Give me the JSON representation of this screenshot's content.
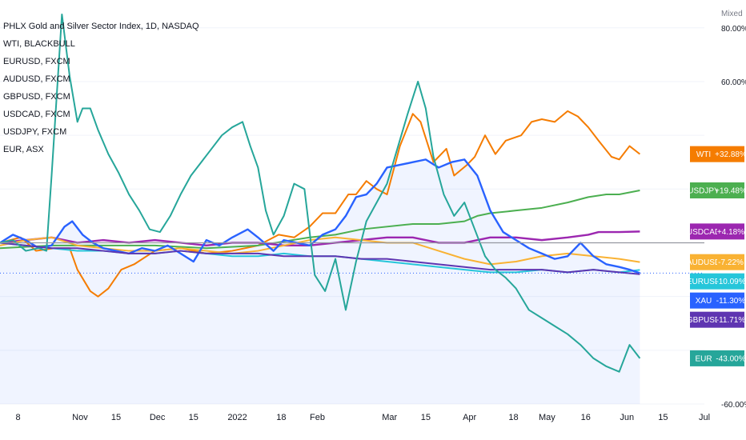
{
  "legend": {
    "title": "PHLX Gold and Silver Sector Index, 1D, NASDAQ",
    "items": [
      "WTI, BLACKBULL",
      "EURUSD, FXCM",
      "AUDUSD, FXCM",
      "GBPUSD, FXCM",
      "USDCAD, FXCM",
      "USDJPY, FXCM",
      "EUR, ASX"
    ]
  },
  "scale_mode": "Mixed",
  "chart_data": {
    "type": "line",
    "x_range": [
      "2021-10-01",
      "2022-07-01"
    ],
    "x_ticks": [
      "8",
      "Nov",
      "15",
      "Dec",
      "15",
      "2022",
      "18",
      "Feb",
      "Mar",
      "15",
      "Apr",
      "18",
      "May",
      "16",
      "Jun",
      "15",
      "Jul"
    ],
    "x_tick_dates": [
      "2021-10-08",
      "2021-11-01",
      "2021-11-15",
      "2021-12-01",
      "2021-12-15",
      "2022-01-01",
      "2022-01-18",
      "2022-02-01",
      "2022-03-01",
      "2022-03-15",
      "2022-04-01",
      "2022-04-18",
      "2022-05-01",
      "2022-05-16",
      "2022-06-01",
      "2022-06-15",
      "2022-07-01"
    ],
    "y_axis": {
      "unit": "%",
      "ticks": [
        {
          "value": 80,
          "label": "80.00%"
        },
        {
          "value": 60,
          "label": "60.00%"
        },
        {
          "value": -60,
          "label": "-60.00%"
        }
      ],
      "range": [
        -60,
        85
      ],
      "gridlines": [
        80,
        60,
        40,
        20,
        0,
        -20,
        -40,
        -60
      ]
    },
    "baseline_value": 0,
    "current_value_line": -11.3,
    "series": [
      {
        "name": "WTI",
        "color": "#f57c00",
        "last_label": "+32.88%",
        "values": [
          [
            0,
            0
          ],
          [
            8,
            2
          ],
          [
            14,
            -3
          ],
          [
            21,
            -2
          ],
          [
            27,
            -2
          ],
          [
            30,
            -10
          ],
          [
            35,
            -18
          ],
          [
            38,
            -20
          ],
          [
            42,
            -17
          ],
          [
            47,
            -10
          ],
          [
            52,
            -8
          ],
          [
            60,
            -3
          ],
          [
            70,
            -2
          ],
          [
            80,
            -4
          ],
          [
            90,
            -3
          ],
          [
            100,
            -1
          ],
          [
            108,
            3
          ],
          [
            114,
            2
          ],
          [
            120,
            6
          ],
          [
            125,
            11
          ],
          [
            130,
            11
          ],
          [
            135,
            18
          ],
          [
            138,
            18
          ],
          [
            142,
            23
          ],
          [
            146,
            20
          ],
          [
            150,
            18
          ],
          [
            155,
            36
          ],
          [
            160,
            48
          ],
          [
            163,
            45
          ],
          [
            168,
            30
          ],
          [
            173,
            35
          ],
          [
            176,
            25
          ],
          [
            181,
            29
          ],
          [
            184,
            32
          ],
          [
            188,
            40
          ],
          [
            192,
            33
          ],
          [
            196,
            38
          ],
          [
            202,
            40
          ],
          [
            206,
            45
          ],
          [
            210,
            46
          ],
          [
            215,
            45
          ],
          [
            220,
            49
          ],
          [
            224,
            47
          ],
          [
            228,
            43
          ],
          [
            232,
            38
          ],
          [
            237,
            32
          ],
          [
            240,
            31
          ],
          [
            244,
            36
          ],
          [
            248,
            33
          ]
        ]
      },
      {
        "name": "USDJPY",
        "color": "#4caf50",
        "last_label": "+19.48%",
        "values": [
          [
            0,
            -2
          ],
          [
            20,
            -1
          ],
          [
            40,
            -1
          ],
          [
            60,
            -1
          ],
          [
            80,
            -2
          ],
          [
            100,
            -1
          ],
          [
            120,
            2
          ],
          [
            130,
            3
          ],
          [
            140,
            5
          ],
          [
            160,
            7
          ],
          [
            170,
            7
          ],
          [
            180,
            8
          ],
          [
            185,
            10
          ],
          [
            190,
            11
          ],
          [
            200,
            12
          ],
          [
            210,
            13
          ],
          [
            220,
            15
          ],
          [
            228,
            17
          ],
          [
            235,
            18
          ],
          [
            240,
            18
          ],
          [
            248,
            19.5
          ]
        ]
      },
      {
        "name": "USDCAD",
        "color": "#9c27b0",
        "last_label": "+4.18%",
        "values": [
          [
            0,
            0
          ],
          [
            10,
            1
          ],
          [
            20,
            2
          ],
          [
            30,
            0
          ],
          [
            40,
            1
          ],
          [
            50,
            0
          ],
          [
            60,
            1
          ],
          [
            70,
            0
          ],
          [
            80,
            -1
          ],
          [
            90,
            0
          ],
          [
            100,
            0
          ],
          [
            110,
            -1
          ],
          [
            120,
            -1
          ],
          [
            130,
            0
          ],
          [
            140,
            1
          ],
          [
            150,
            2
          ],
          [
            160,
            2
          ],
          [
            170,
            0
          ],
          [
            180,
            0
          ],
          [
            190,
            2
          ],
          [
            200,
            2
          ],
          [
            210,
            1
          ],
          [
            220,
            2
          ],
          [
            228,
            3
          ],
          [
            232,
            4
          ],
          [
            240,
            4
          ],
          [
            248,
            4.2
          ]
        ]
      },
      {
        "name": "AUDUSD",
        "color": "#f9b233",
        "last_label": "-7.22%",
        "values": [
          [
            0,
            -1
          ],
          [
            10,
            1
          ],
          [
            20,
            2
          ],
          [
            30,
            -1
          ],
          [
            40,
            -2
          ],
          [
            50,
            -3
          ],
          [
            60,
            -3
          ],
          [
            70,
            -2
          ],
          [
            80,
            -3
          ],
          [
            90,
            -4
          ],
          [
            100,
            -3
          ],
          [
            110,
            -1
          ],
          [
            120,
            1
          ],
          [
            130,
            2
          ],
          [
            140,
            1
          ],
          [
            150,
            0
          ],
          [
            160,
            0
          ],
          [
            170,
            -3
          ],
          [
            180,
            -6
          ],
          [
            190,
            -8
          ],
          [
            200,
            -7
          ],
          [
            210,
            -5
          ],
          [
            220,
            -4
          ],
          [
            230,
            -5
          ],
          [
            240,
            -6
          ],
          [
            248,
            -7.2
          ]
        ]
      },
      {
        "name": "EURUSD",
        "color": "#26c6da",
        "last_label": "-10.09%",
        "values": [
          [
            0,
            0
          ],
          [
            10,
            -1
          ],
          [
            20,
            -2
          ],
          [
            30,
            -3
          ],
          [
            40,
            -3
          ],
          [
            50,
            -4
          ],
          [
            60,
            -4
          ],
          [
            70,
            -3
          ],
          [
            80,
            -4
          ],
          [
            90,
            -5
          ],
          [
            100,
            -5
          ],
          [
            110,
            -4
          ],
          [
            120,
            -5
          ],
          [
            130,
            -5
          ],
          [
            140,
            -6
          ],
          [
            150,
            -7
          ],
          [
            160,
            -8
          ],
          [
            170,
            -9
          ],
          [
            180,
            -10
          ],
          [
            190,
            -11
          ],
          [
            200,
            -11
          ],
          [
            210,
            -10
          ],
          [
            220,
            -11
          ],
          [
            230,
            -10
          ],
          [
            240,
            -11
          ],
          [
            248,
            -10.1
          ]
        ]
      },
      {
        "name": "XAU",
        "color": "#2962ff",
        "last_label": "-11.30%",
        "values": [
          [
            0,
            0
          ],
          [
            5,
            3
          ],
          [
            10,
            1
          ],
          [
            15,
            -2
          ],
          [
            20,
            -1
          ],
          [
            25,
            6
          ],
          [
            28,
            8
          ],
          [
            32,
            3
          ],
          [
            36,
            0
          ],
          [
            40,
            -2
          ],
          [
            45,
            -3
          ],
          [
            50,
            -4
          ],
          [
            55,
            -2
          ],
          [
            60,
            -3
          ],
          [
            65,
            -1
          ],
          [
            70,
            -4
          ],
          [
            75,
            -7
          ],
          [
            80,
            1
          ],
          [
            85,
            -1
          ],
          [
            90,
            2
          ],
          [
            96,
            5
          ],
          [
            100,
            2
          ],
          [
            106,
            -3
          ],
          [
            110,
            1
          ],
          [
            115,
            0
          ],
          [
            120,
            -1
          ],
          [
            125,
            3
          ],
          [
            130,
            5
          ],
          [
            134,
            10
          ],
          [
            138,
            17
          ],
          [
            142,
            18
          ],
          [
            146,
            22
          ],
          [
            150,
            28
          ],
          [
            155,
            29
          ],
          [
            160,
            30
          ],
          [
            165,
            31
          ],
          [
            170,
            28
          ],
          [
            175,
            30
          ],
          [
            180,
            31
          ],
          [
            185,
            25
          ],
          [
            190,
            12
          ],
          [
            195,
            4
          ],
          [
            200,
            1
          ],
          [
            205,
            -2
          ],
          [
            210,
            -4
          ],
          [
            215,
            -6
          ],
          [
            220,
            -5
          ],
          [
            225,
            0
          ],
          [
            230,
            -5
          ],
          [
            235,
            -8
          ],
          [
            240,
            -9
          ],
          [
            244,
            -10
          ],
          [
            248,
            -11.3
          ]
        ]
      },
      {
        "name": "GBPUSD",
        "color": "#5e35b1",
        "last_label": "-11.71%",
        "values": [
          [
            0,
            0
          ],
          [
            10,
            -1
          ],
          [
            20,
            -2
          ],
          [
            30,
            -2
          ],
          [
            40,
            -3
          ],
          [
            50,
            -4
          ],
          [
            60,
            -4
          ],
          [
            70,
            -3
          ],
          [
            80,
            -4
          ],
          [
            90,
            -4
          ],
          [
            100,
            -4
          ],
          [
            110,
            -5
          ],
          [
            120,
            -5
          ],
          [
            130,
            -5
          ],
          [
            140,
            -6
          ],
          [
            150,
            -6
          ],
          [
            160,
            -7
          ],
          [
            170,
            -8
          ],
          [
            180,
            -9
          ],
          [
            190,
            -10
          ],
          [
            200,
            -10
          ],
          [
            210,
            -10
          ],
          [
            220,
            -11
          ],
          [
            230,
            -10
          ],
          [
            240,
            -11
          ],
          [
            248,
            -11.7
          ]
        ]
      },
      {
        "name": "EUR",
        "color": "#26a69a",
        "last_label": "-43.00%",
        "values": [
          [
            0,
            0
          ],
          [
            5,
            1
          ],
          [
            10,
            -3
          ],
          [
            15,
            -2
          ],
          [
            18,
            -3
          ],
          [
            20,
            25
          ],
          [
            24,
            85
          ],
          [
            27,
            62
          ],
          [
            30,
            45
          ],
          [
            32,
            50
          ],
          [
            35,
            50
          ],
          [
            38,
            42
          ],
          [
            42,
            33
          ],
          [
            46,
            26
          ],
          [
            50,
            18
          ],
          [
            54,
            12
          ],
          [
            58,
            5
          ],
          [
            62,
            4
          ],
          [
            66,
            10
          ],
          [
            70,
            18
          ],
          [
            74,
            25
          ],
          [
            78,
            30
          ],
          [
            82,
            35
          ],
          [
            86,
            40
          ],
          [
            90,
            43
          ],
          [
            94,
            45
          ],
          [
            97,
            36
          ],
          [
            100,
            28
          ],
          [
            103,
            12
          ],
          [
            106,
            3
          ],
          [
            110,
            10
          ],
          [
            114,
            22
          ],
          [
            118,
            20
          ],
          [
            122,
            -12
          ],
          [
            126,
            -18
          ],
          [
            130,
            -6
          ],
          [
            134,
            -25
          ],
          [
            138,
            -7
          ],
          [
            142,
            8
          ],
          [
            146,
            15
          ],
          [
            150,
            22
          ],
          [
            154,
            35
          ],
          [
            158,
            48
          ],
          [
            162,
            60
          ],
          [
            165,
            50
          ],
          [
            168,
            32
          ],
          [
            172,
            18
          ],
          [
            176,
            10
          ],
          [
            180,
            15
          ],
          [
            184,
            5
          ],
          [
            188,
            -5
          ],
          [
            192,
            -10
          ],
          [
            196,
            -13
          ],
          [
            200,
            -17
          ],
          [
            205,
            -25
          ],
          [
            210,
            -28
          ],
          [
            215,
            -31
          ],
          [
            220,
            -34
          ],
          [
            225,
            -38
          ],
          [
            230,
            -43
          ],
          [
            235,
            -46
          ],
          [
            240,
            -48
          ],
          [
            244,
            -38
          ],
          [
            248,
            -43
          ]
        ]
      }
    ]
  }
}
